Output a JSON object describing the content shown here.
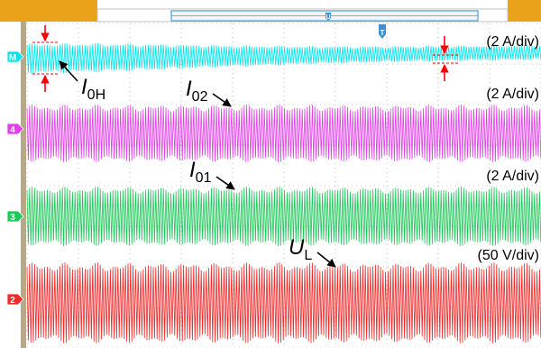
{
  "chart_data": {
    "type": "line",
    "title": "",
    "xlabel": "",
    "ylabel": "",
    "grid": true,
    "series": [
      {
        "name": "I0H",
        "channel": "M",
        "color": "#00e5ee",
        "scale_label": "(2 A/div)",
        "label_main": "I",
        "label_sub": "0H",
        "amplitude_profile": [
          1.0,
          0.98,
          0.9,
          0.78,
          0.68,
          0.6,
          0.55,
          0.52,
          0.5,
          0.5
        ]
      },
      {
        "name": "I02",
        "channel": "4",
        "color": "#e040e8",
        "scale_label": "(2 A/div)",
        "label_main": "I",
        "label_sub": "02",
        "amplitude_profile": [
          1,
          1,
          1,
          1,
          1,
          1,
          1,
          1,
          1,
          1
        ]
      },
      {
        "name": "I01",
        "channel": "3",
        "color": "#1fc85a",
        "scale_label": "(2 A/div)",
        "label_main": "I",
        "label_sub": "01",
        "amplitude_profile": [
          1,
          1,
          1,
          1,
          1,
          1,
          1,
          1,
          1,
          1
        ]
      },
      {
        "name": "UL",
        "channel": "2",
        "color": "#ee2a2a",
        "scale_label": "(50 V/div)",
        "label_main": "U",
        "label_sub": "L",
        "amplitude_profile": [
          1,
          1,
          1,
          1,
          1,
          1,
          1,
          1,
          1,
          1
        ]
      }
    ]
  },
  "markers": {
    "trigger_position": "T",
    "window_marker": "U"
  },
  "colors": {
    "status_bar_orange": "#e9a21a",
    "frame_tan": "#b8a888",
    "grid_dots": "#9a9a9a",
    "annotation_red": "#ff0000"
  }
}
